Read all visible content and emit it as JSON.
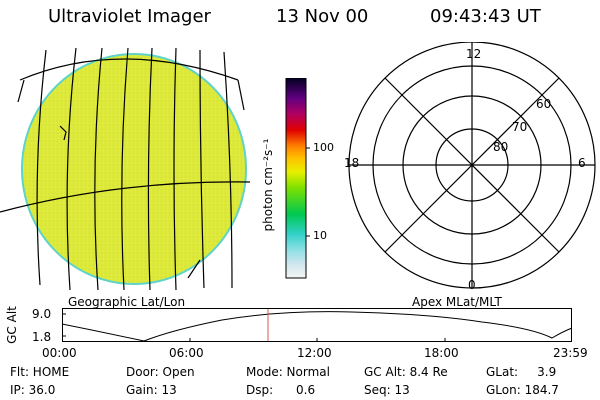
{
  "header": {
    "instrument": "Ultraviolet Imager",
    "date": "13 Nov 00",
    "time": "09:43:43 UT"
  },
  "colorbar": {
    "unit_label": "photon cm⁻²s⁻¹",
    "tick_100": "100",
    "tick_10": "10"
  },
  "polar_plot": {
    "mlt_12": "12",
    "mlt_18": "18",
    "mlt_6": "6",
    "mlt_0": "0",
    "lat_60": "60",
    "lat_70": "70",
    "lat_80": "80"
  },
  "projection_labels": {
    "left": "Geographic Lat/Lon",
    "right": "Apex MLat/MLT"
  },
  "altitude_plot": {
    "axis_label": "GC Alt",
    "y_max": "9.0",
    "y_min": "1.8",
    "time_ticks": [
      "00:00",
      "06:00",
      "12:00",
      "18:00",
      "23:59"
    ]
  },
  "status": {
    "flt": "Flt: HOME",
    "ip": "IP: 36.0",
    "door": "Door: Open",
    "gain": "Gain: 13",
    "mode": "Mode: Normal",
    "dsp": "Dsp:      0.6",
    "gc_alt": "GC Alt: 8.4 Re",
    "seq": "Seq: 13",
    "glat": "GLat:     3.9",
    "glon": "GLon: 184.7"
  },
  "colors": {
    "disk_fill": "#dce93a",
    "disk_edge": "#5fd3c8",
    "marker": "#e05050"
  }
}
